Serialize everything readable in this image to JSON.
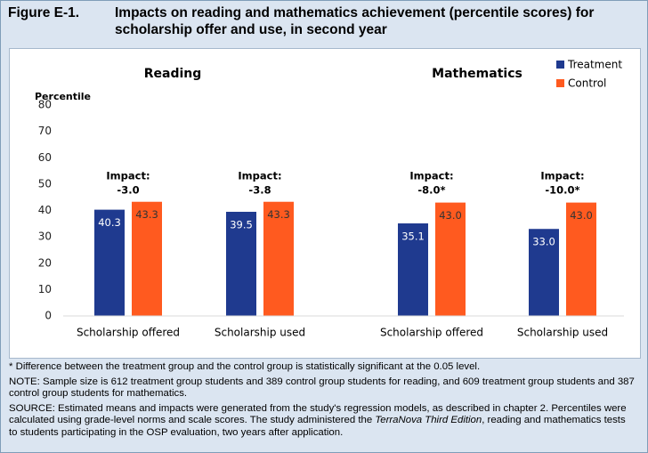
{
  "figure_label": "Figure E-1.",
  "chart_data": {
    "type": "bar",
    "title": "Impacts on reading and mathematics achievement (percentile scores) for scholarship offer and use, in second year",
    "y_label": "Percentile",
    "panels": [
      "Reading",
      "Mathematics"
    ],
    "categories": [
      "Scholarship offered",
      "Scholarship used",
      "Scholarship offered",
      "Scholarship used"
    ],
    "series": [
      {
        "name": "Treatment",
        "color": "#1f3a8f",
        "values": [
          40.3,
          39.5,
          35.1,
          33.0
        ],
        "value_labels": [
          "40.3",
          "39.5",
          "35.1",
          "33.0"
        ]
      },
      {
        "name": "Control",
        "color": "#ff5a1f",
        "values": [
          43.3,
          43.3,
          43.0,
          43.0
        ],
        "value_labels": [
          "43.3",
          "43.3",
          "43.0",
          "43.0"
        ]
      }
    ],
    "annotations": [
      {
        "label": "Impact:",
        "value": "-3.0"
      },
      {
        "label": "Impact:",
        "value": "-3.8"
      },
      {
        "label": "Impact:",
        "value": "-8.0*"
      },
      {
        "label": "Impact:",
        "value": "-10.0*"
      }
    ],
    "ylim": [
      0,
      80
    ],
    "yticks": [
      0,
      10,
      20,
      30,
      40,
      50,
      60,
      70,
      80
    ],
    "legend": "top-right"
  },
  "notes": [
    "* Difference between the treatment group and the control group is statistically significant at the 0.05 level.",
    "NOTE: Sample size is 612 treatment group students and 389 control group students for reading, and 609 treatment group students and 387 control group students for mathematics."
  ],
  "source": [
    "SOURCE: Estimated means and impacts were generated from the study's regression models, as described in chapter 2. Percentiles were calculated using grade-level norms and scale scores. The study administered the ",
    "TerraNova Third Edition",
    ", reading and mathematics tests to students participating in the OSP evaluation, two years after application."
  ]
}
